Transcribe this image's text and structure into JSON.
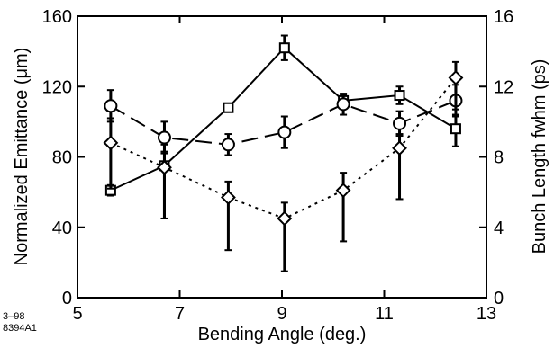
{
  "chart_data": {
    "type": "line",
    "xlabel": "Bending Angle  (deg.)",
    "ylabel_left": "Normalized Emittance  (μm)",
    "ylabel_right": "Bunch Length fwhm  (ps)",
    "xlim": [
      5,
      13
    ],
    "ylim_left": [
      0,
      160
    ],
    "ylim_right": [
      0,
      16
    ],
    "x_ticks": [
      5,
      7,
      9,
      11,
      13
    ],
    "y_ticks_left": [
      0,
      40,
      80,
      120,
      160
    ],
    "y_ticks_right": [
      0,
      4,
      8,
      12,
      16
    ],
    "grid": false,
    "series": [
      {
        "marker": "square",
        "line_style": "solid",
        "axis": "left",
        "points": [
          {
            "x": 5.65,
            "y": 61,
            "err_low": 3,
            "err_high": 3
          },
          {
            "x": 6.7,
            "y": 75,
            "err_low": 30,
            "err_high": 8
          },
          {
            "x": 7.95,
            "y": 108,
            "err_low": 2,
            "err_high": 2
          },
          {
            "x": 9.05,
            "y": 142,
            "err_low": 7,
            "err_high": 7
          },
          {
            "x": 10.2,
            "y": 112,
            "err_low": 3,
            "err_high": 3
          },
          {
            "x": 11.3,
            "y": 115,
            "err_low": 5,
            "err_high": 5
          },
          {
            "x": 12.4,
            "y": 96,
            "err_low": 10,
            "err_high": 8
          }
        ]
      },
      {
        "marker": "circle",
        "line_style": "dashed",
        "axis": "left",
        "points": [
          {
            "x": 5.65,
            "y": 109,
            "err_low": 9,
            "err_high": 9
          },
          {
            "x": 6.7,
            "y": 91,
            "err_low": 9,
            "err_high": 9
          },
          {
            "x": 7.95,
            "y": 87,
            "err_low": 6,
            "err_high": 6
          },
          {
            "x": 9.05,
            "y": 94,
            "err_low": 9,
            "err_high": 9
          },
          {
            "x": 10.2,
            "y": 110,
            "err_low": 6,
            "err_high": 6
          },
          {
            "x": 11.3,
            "y": 99,
            "err_low": 7,
            "err_high": 7
          },
          {
            "x": 12.4,
            "y": 112,
            "err_low": 9,
            "err_high": 9
          }
        ]
      },
      {
        "marker": "diamond",
        "line_style": "dotted",
        "axis": "left",
        "points": [
          {
            "x": 5.65,
            "y": 88,
            "err_low": 26,
            "err_high": 14
          },
          {
            "x": 6.7,
            "y": 74,
            "err_low": 29,
            "err_high": 13
          },
          {
            "x": 7.95,
            "y": 57,
            "err_low": 30,
            "err_high": 9
          },
          {
            "x": 9.05,
            "y": 45,
            "err_low": 30,
            "err_high": 9
          },
          {
            "x": 10.2,
            "y": 61,
            "err_low": 29,
            "err_high": 10
          },
          {
            "x": 11.3,
            "y": 85,
            "err_low": 29,
            "err_high": 8
          },
          {
            "x": 12.4,
            "y": 125,
            "err_low": 18,
            "err_high": 9
          }
        ]
      }
    ]
  },
  "figure_code": {
    "line1": "3–98",
    "line2": "8394A1"
  }
}
